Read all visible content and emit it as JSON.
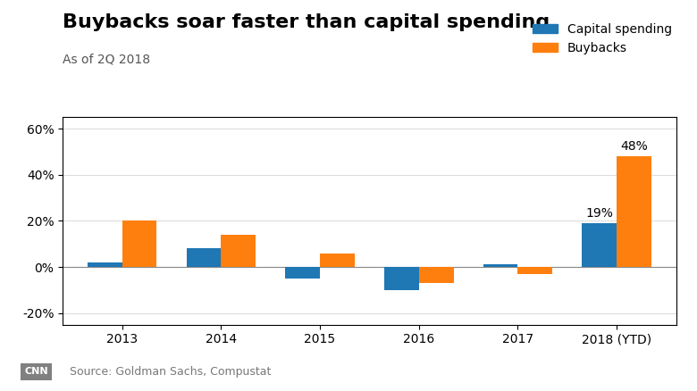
{
  "chart_data": {
    "type": "bar",
    "title": "Buybacks soar faster than capital spending",
    "subtitle": "As of 2Q 2018",
    "source": "Source: Goldman Sachs, Compustat",
    "logo": "CNN",
    "categories": [
      "2013",
      "2014",
      "2015",
      "2016",
      "2017",
      "2018 (YTD)"
    ],
    "series": [
      {
        "name": "Capital spending",
        "values": [
          2,
          8,
          -5,
          -10,
          1,
          19
        ]
      },
      {
        "name": "Buybacks",
        "values": [
          20,
          14,
          6,
          -7,
          -3,
          48
        ]
      }
    ],
    "annotations": [
      {
        "text": "19%",
        "category": "2018 (YTD)",
        "series": "Capital spending",
        "value": 19
      },
      {
        "text": "48%",
        "category": "2018 (YTD)",
        "series": "Buybacks",
        "value": 48
      }
    ],
    "ylim": [
      -25,
      65
    ],
    "yticks": [
      {
        "value": -20,
        "label": "-20%"
      },
      {
        "value": 0,
        "label": "0%"
      },
      {
        "value": 20,
        "label": "20%"
      },
      {
        "value": 40,
        "label": "40%"
      },
      {
        "value": 60,
        "label": "60%"
      }
    ],
    "grid": true,
    "legend": "upper right"
  }
}
